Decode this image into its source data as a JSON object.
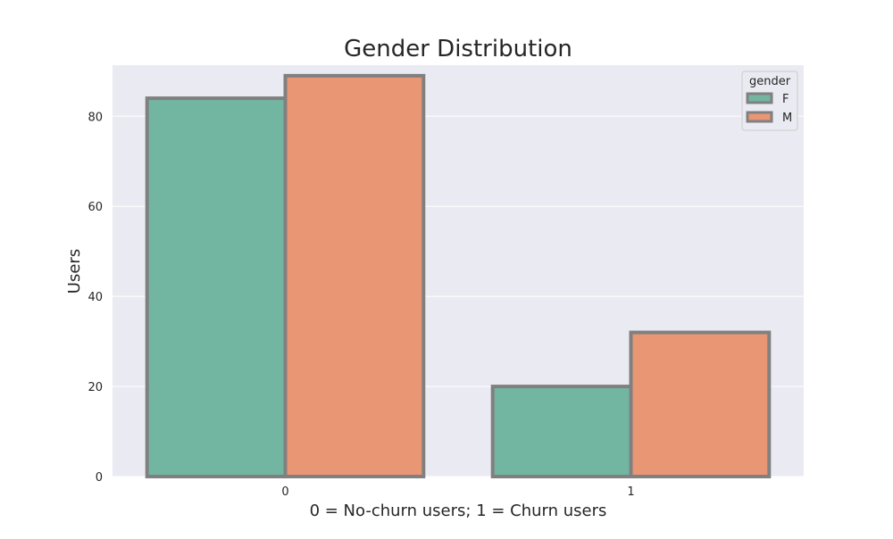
{
  "chart_data": {
    "type": "bar",
    "title": "Gender Distribution",
    "xlabel": "0 = No-churn users; 1 = Churn users",
    "ylabel": "Users",
    "categories": [
      "0",
      "1"
    ],
    "series": [
      {
        "name": "F",
        "values": [
          84,
          20
        ],
        "color": "#72b6a1"
      },
      {
        "name": "M",
        "values": [
          89,
          32
        ],
        "color": "#e99675"
      }
    ],
    "ylim": [
      0,
      91.35
    ],
    "yticks": [
      0,
      20,
      40,
      60,
      80
    ],
    "grid": true,
    "legend": {
      "title": "gender",
      "placement": "top-right"
    },
    "colors": {
      "plot_background": "#eaeaf2",
      "grid": "#ffffff",
      "bar_edge": "#808080"
    }
  }
}
